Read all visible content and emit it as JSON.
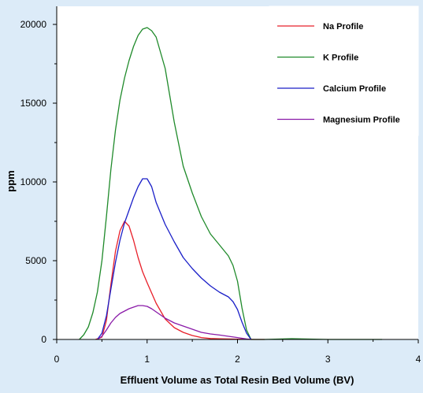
{
  "chart_data": {
    "type": "line",
    "title": "",
    "xlabel": "Effluent Volume as Total Resin Bed Volume (BV)",
    "ylabel": "ppm",
    "xlim": [
      0,
      4
    ],
    "ylim": [
      0,
      20000
    ],
    "xticks": [
      "0",
      "1",
      "2",
      "3",
      "4"
    ],
    "yticks": [
      "0",
      "5000",
      "10000",
      "15000",
      "20000"
    ],
    "grid": false,
    "legend_position": "top-right",
    "series": [
      {
        "name": "Na Profile",
        "color": "#e8202a",
        "x": [
          0.43,
          0.5,
          0.55,
          0.6,
          0.65,
          0.7,
          0.75,
          0.8,
          0.85,
          0.9,
          0.95,
          1.0,
          1.1,
          1.2,
          1.3,
          1.4,
          1.5,
          1.6,
          1.7,
          1.8,
          1.9,
          2.0,
          2.1,
          2.2,
          2.3
        ],
        "y": [
          0,
          150,
          1200,
          3500,
          5600,
          6900,
          7500,
          7200,
          6300,
          5200,
          4300,
          3600,
          2300,
          1300,
          750,
          450,
          250,
          120,
          60,
          40,
          30,
          20,
          10,
          0,
          0
        ]
      },
      {
        "name": "K Profile",
        "color": "#1f8a2a",
        "x": [
          0.25,
          0.3,
          0.35,
          0.4,
          0.45,
          0.5,
          0.55,
          0.6,
          0.65,
          0.7,
          0.75,
          0.8,
          0.85,
          0.9,
          0.95,
          1.0,
          1.05,
          1.1,
          1.2,
          1.3,
          1.4,
          1.5,
          1.6,
          1.7,
          1.8,
          1.9,
          1.95,
          2.0,
          2.05,
          2.1,
          2.15,
          2.3,
          2.6,
          3.0,
          3.4,
          3.6
        ],
        "y": [
          0,
          300,
          800,
          1700,
          3000,
          5000,
          7800,
          10800,
          13300,
          15200,
          16600,
          17700,
          18600,
          19300,
          19700,
          19800,
          19600,
          19200,
          17200,
          13800,
          11000,
          9300,
          7800,
          6700,
          6000,
          5300,
          4700,
          3700,
          2000,
          600,
          0,
          0,
          50,
          0,
          0,
          0
        ]
      },
      {
        "name": "Calcium Profile",
        "color": "#1a1fc8",
        "x": [
          0.45,
          0.5,
          0.55,
          0.6,
          0.65,
          0.7,
          0.75,
          0.8,
          0.85,
          0.9,
          0.95,
          1.0,
          1.05,
          1.1,
          1.2,
          1.3,
          1.4,
          1.5,
          1.6,
          1.7,
          1.8,
          1.9,
          1.95,
          2.0,
          2.05,
          2.1,
          2.15
        ],
        "y": [
          0,
          400,
          1500,
          3200,
          4900,
          6300,
          7400,
          8200,
          9000,
          9700,
          10200,
          10200,
          9700,
          8700,
          7300,
          6200,
          5200,
          4500,
          3900,
          3400,
          3000,
          2700,
          2400,
          1900,
          1100,
          400,
          0
        ]
      },
      {
        "name": "Magnesium Profile",
        "color": "#8a1aa8",
        "x": [
          0.45,
          0.5,
          0.55,
          0.6,
          0.65,
          0.7,
          0.75,
          0.8,
          0.85,
          0.9,
          0.95,
          1.0,
          1.05,
          1.1,
          1.2,
          1.3,
          1.4,
          1.5,
          1.6,
          1.7,
          1.8,
          1.9,
          2.0,
          2.1,
          2.15
        ],
        "y": [
          0,
          200,
          600,
          1050,
          1400,
          1650,
          1800,
          1950,
          2050,
          2150,
          2150,
          2100,
          1950,
          1750,
          1350,
          1050,
          850,
          650,
          450,
          350,
          280,
          200,
          120,
          30,
          0
        ]
      }
    ]
  }
}
